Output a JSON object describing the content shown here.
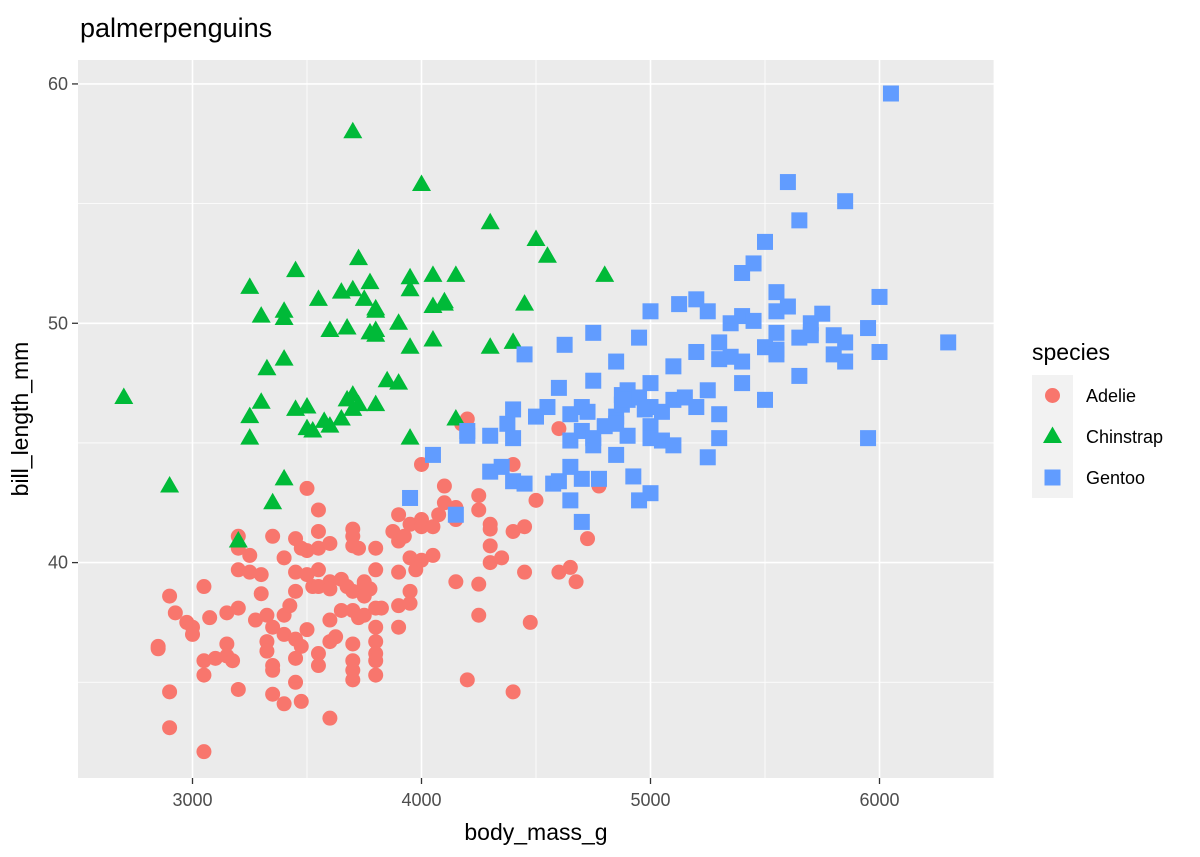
{
  "chart_data": {
    "type": "scatter",
    "title": "palmerpenguins",
    "xlabel": "body_mass_g",
    "ylabel": "bill_length_mm",
    "xlim": [
      2500,
      6500
    ],
    "ylim": [
      31,
      61
    ],
    "xticks": [
      3000,
      4000,
      5000,
      6000
    ],
    "yticks": [
      40,
      50,
      60
    ],
    "grid": true,
    "legend": {
      "title": "species",
      "position": "right"
    },
    "series": [
      {
        "name": "Adelie",
        "shape": "circle",
        "color": "#F8766D",
        "points": [
          [
            2850,
            36.5
          ],
          [
            2850,
            36.4
          ],
          [
            2900,
            38.6
          ],
          [
            2900,
            34.6
          ],
          [
            2900,
            33.1
          ],
          [
            2925,
            37.9
          ],
          [
            2975,
            37.5
          ],
          [
            3000,
            37.3
          ],
          [
            3000,
            37.0
          ],
          [
            3050,
            39.0
          ],
          [
            3050,
            35.9
          ],
          [
            3050,
            35.3
          ],
          [
            3050,
            32.1
          ],
          [
            3075,
            37.7
          ],
          [
            3100,
            36.0
          ],
          [
            3150,
            36.6
          ],
          [
            3150,
            36.1
          ],
          [
            3150,
            37.9
          ],
          [
            3175,
            35.9
          ],
          [
            3200,
            38.1
          ],
          [
            3200,
            41.1
          ],
          [
            3200,
            40.6
          ],
          [
            3200,
            39.7
          ],
          [
            3200,
            34.7
          ],
          [
            3250,
            40.3
          ],
          [
            3250,
            39.6
          ],
          [
            3275,
            37.6
          ],
          [
            3300,
            38.7
          ],
          [
            3300,
            39.5
          ],
          [
            3325,
            37.8
          ],
          [
            3325,
            36.7
          ],
          [
            3325,
            36.3
          ],
          [
            3350,
            41.1
          ],
          [
            3350,
            37.3
          ],
          [
            3350,
            35.7
          ],
          [
            3350,
            35.5
          ],
          [
            3350,
            34.5
          ],
          [
            3400,
            40.2
          ],
          [
            3400,
            37.0
          ],
          [
            3400,
            37.8
          ],
          [
            3400,
            34.1
          ],
          [
            3425,
            38.2
          ],
          [
            3450,
            41.0
          ],
          [
            3450,
            39.6
          ],
          [
            3450,
            38.8
          ],
          [
            3450,
            36.8
          ],
          [
            3450,
            36.0
          ],
          [
            3450,
            35.0
          ],
          [
            3475,
            40.6
          ],
          [
            3475,
            36.5
          ],
          [
            3475,
            34.2
          ],
          [
            3500,
            43.1
          ],
          [
            3500,
            39.5
          ],
          [
            3500,
            40.5
          ],
          [
            3500,
            37.2
          ],
          [
            3525,
            39.0
          ],
          [
            3550,
            42.2
          ],
          [
            3550,
            41.3
          ],
          [
            3550,
            40.6
          ],
          [
            3550,
            39.7
          ],
          [
            3550,
            39.0
          ],
          [
            3550,
            36.2
          ],
          [
            3550,
            35.7
          ],
          [
            3600,
            40.8
          ],
          [
            3600,
            39.2
          ],
          [
            3600,
            38.9
          ],
          [
            3600,
            37.6
          ],
          [
            3600,
            36.7
          ],
          [
            3600,
            33.5
          ],
          [
            3625,
            36.9
          ],
          [
            3650,
            39.3
          ],
          [
            3650,
            38.0
          ],
          [
            3675,
            39.0
          ],
          [
            3700,
            41.4
          ],
          [
            3700,
            41.1
          ],
          [
            3700,
            40.7
          ],
          [
            3700,
            38.8
          ],
          [
            3700,
            38.0
          ],
          [
            3700,
            36.6
          ],
          [
            3700,
            35.9
          ],
          [
            3700,
            35.5
          ],
          [
            3700,
            35.1
          ],
          [
            3725,
            40.6
          ],
          [
            3725,
            37.7
          ],
          [
            3750,
            39.1
          ],
          [
            3750,
            39.2
          ],
          [
            3750,
            38.6
          ],
          [
            3750,
            37.8
          ],
          [
            3775,
            38.9
          ],
          [
            3800,
            40.6
          ],
          [
            3800,
            39.7
          ],
          [
            3800,
            38.1
          ],
          [
            3800,
            37.3
          ],
          [
            3800,
            36.7
          ],
          [
            3800,
            35.9
          ],
          [
            3800,
            35.3
          ],
          [
            3800,
            36.2
          ],
          [
            3825,
            38.1
          ],
          [
            3875,
            41.3
          ],
          [
            3900,
            42.0
          ],
          [
            3900,
            40.9
          ],
          [
            3900,
            39.6
          ],
          [
            3900,
            37.3
          ],
          [
            3900,
            38.2
          ],
          [
            3925,
            41.1
          ],
          [
            3950,
            40.2
          ],
          [
            3950,
            41.6
          ],
          [
            3950,
            38.8
          ],
          [
            3950,
            38.3
          ],
          [
            3975,
            39.7
          ],
          [
            4000,
            44.1
          ],
          [
            4000,
            41.8
          ],
          [
            4000,
            41.5
          ],
          [
            4000,
            40.1
          ],
          [
            4050,
            41.5
          ],
          [
            4050,
            40.3
          ],
          [
            4075,
            42.0
          ],
          [
            4100,
            43.2
          ],
          [
            4100,
            42.5
          ],
          [
            4150,
            42.3
          ],
          [
            4150,
            41.8
          ],
          [
            4150,
            39.2
          ],
          [
            4175,
            45.8
          ],
          [
            4200,
            46.0
          ],
          [
            4200,
            35.1
          ],
          [
            4250,
            42.8
          ],
          [
            4250,
            42.2
          ],
          [
            4250,
            39.1
          ],
          [
            4250,
            37.8
          ],
          [
            4300,
            41.6
          ],
          [
            4300,
            41.4
          ],
          [
            4300,
            40.7
          ],
          [
            4300,
            40.0
          ],
          [
            4350,
            40.2
          ],
          [
            4400,
            44.1
          ],
          [
            4400,
            41.3
          ],
          [
            4400,
            34.6
          ],
          [
            4450,
            39.6
          ],
          [
            4450,
            41.5
          ],
          [
            4475,
            37.5
          ],
          [
            4500,
            42.6
          ],
          [
            4600,
            45.6
          ],
          [
            4600,
            39.6
          ],
          [
            4650,
            39.8
          ],
          [
            4675,
            39.2
          ],
          [
            4725,
            41.0
          ],
          [
            4775,
            43.2
          ]
        ]
      },
      {
        "name": "Chinstrap",
        "shape": "triangle",
        "color": "#00BA38",
        "points": [
          [
            2700,
            46.9
          ],
          [
            2900,
            43.2
          ],
          [
            3200,
            40.9
          ],
          [
            3250,
            46.1
          ],
          [
            3250,
            45.2
          ],
          [
            3250,
            51.5
          ],
          [
            3300,
            50.3
          ],
          [
            3300,
            46.7
          ],
          [
            3325,
            48.1
          ],
          [
            3350,
            42.5
          ],
          [
            3400,
            50.5
          ],
          [
            3400,
            50.2
          ],
          [
            3400,
            48.5
          ],
          [
            3400,
            43.5
          ],
          [
            3450,
            52.2
          ],
          [
            3450,
            46.4
          ],
          [
            3500,
            46.5
          ],
          [
            3500,
            45.6
          ],
          [
            3525,
            45.5
          ],
          [
            3550,
            51.0
          ],
          [
            3575,
            45.9
          ],
          [
            3600,
            49.7
          ],
          [
            3600,
            45.7
          ],
          [
            3650,
            46.0
          ],
          [
            3650,
            51.3
          ],
          [
            3675,
            49.8
          ],
          [
            3675,
            46.8
          ],
          [
            3700,
            58.0
          ],
          [
            3700,
            51.4
          ],
          [
            3700,
            46.4
          ],
          [
            3700,
            47.0
          ],
          [
            3725,
            52.7
          ],
          [
            3725,
            46.6
          ],
          [
            3750,
            51.0
          ],
          [
            3775,
            51.7
          ],
          [
            3775,
            49.6
          ],
          [
            3800,
            50.6
          ],
          [
            3800,
            50.5
          ],
          [
            3800,
            49.7
          ],
          [
            3800,
            49.5
          ],
          [
            3800,
            46.6
          ],
          [
            3850,
            47.6
          ],
          [
            3900,
            50.0
          ],
          [
            3900,
            47.5
          ],
          [
            3950,
            51.9
          ],
          [
            3950,
            51.4
          ],
          [
            3950,
            49.0
          ],
          [
            3950,
            45.2
          ],
          [
            4000,
            55.8
          ],
          [
            4050,
            52.0
          ],
          [
            4050,
            50.7
          ],
          [
            4050,
            49.3
          ],
          [
            4100,
            50.9
          ],
          [
            4100,
            50.8
          ],
          [
            4150,
            52.0
          ],
          [
            4150,
            46.0
          ],
          [
            4300,
            54.2
          ],
          [
            4300,
            49.0
          ],
          [
            4400,
            49.2
          ],
          [
            4450,
            50.8
          ],
          [
            4500,
            53.5
          ],
          [
            4550,
            52.8
          ],
          [
            4800,
            52.0
          ]
        ]
      },
      {
        "name": "Gentoo",
        "shape": "square",
        "color": "#619CFF",
        "points": [
          [
            3950,
            42.7
          ],
          [
            4050,
            44.5
          ],
          [
            4150,
            42.0
          ],
          [
            4200,
            45.5
          ],
          [
            4200,
            45.3
          ],
          [
            4300,
            45.3
          ],
          [
            4300,
            43.8
          ],
          [
            4350,
            44.0
          ],
          [
            4375,
            45.8
          ],
          [
            4400,
            46.4
          ],
          [
            4400,
            45.2
          ],
          [
            4400,
            43.4
          ],
          [
            4450,
            48.7
          ],
          [
            4450,
            43.3
          ],
          [
            4500,
            46.1
          ],
          [
            4550,
            46.5
          ],
          [
            4575,
            43.3
          ],
          [
            4600,
            47.3
          ],
          [
            4600,
            43.4
          ],
          [
            4625,
            49.1
          ],
          [
            4650,
            46.2
          ],
          [
            4650,
            45.1
          ],
          [
            4650,
            44.0
          ],
          [
            4650,
            42.6
          ],
          [
            4700,
            46.5
          ],
          [
            4700,
            45.5
          ],
          [
            4700,
            43.5
          ],
          [
            4700,
            41.7
          ],
          [
            4725,
            46.3
          ],
          [
            4750,
            49.6
          ],
          [
            4750,
            47.6
          ],
          [
            4750,
            45.2
          ],
          [
            4750,
            44.9
          ],
          [
            4775,
            43.5
          ],
          [
            4800,
            45.7
          ],
          [
            4850,
            48.4
          ],
          [
            4850,
            46.1
          ],
          [
            4850,
            45.8
          ],
          [
            4850,
            44.5
          ],
          [
            4875,
            47.0
          ],
          [
            4875,
            46.6
          ],
          [
            4900,
            47.2
          ],
          [
            4900,
            46.8
          ],
          [
            4900,
            45.3
          ],
          [
            4925,
            43.6
          ],
          [
            4950,
            49.4
          ],
          [
            4950,
            46.9
          ],
          [
            4950,
            42.6
          ],
          [
            4975,
            46.4
          ],
          [
            5000,
            50.5
          ],
          [
            5000,
            47.5
          ],
          [
            5000,
            46.5
          ],
          [
            5000,
            45.7
          ],
          [
            5000,
            45.2
          ],
          [
            5000,
            42.9
          ],
          [
            5050,
            46.3
          ],
          [
            5050,
            45.1
          ],
          [
            5100,
            48.2
          ],
          [
            5100,
            46.8
          ],
          [
            5100,
            44.9
          ],
          [
            5125,
            50.8
          ],
          [
            5150,
            46.9
          ],
          [
            5200,
            51.0
          ],
          [
            5200,
            48.8
          ],
          [
            5200,
            46.5
          ],
          [
            5250,
            50.5
          ],
          [
            5250,
            47.2
          ],
          [
            5250,
            44.4
          ],
          [
            5300,
            49.2
          ],
          [
            5300,
            48.5
          ],
          [
            5300,
            46.2
          ],
          [
            5300,
            45.2
          ],
          [
            5350,
            50.0
          ],
          [
            5350,
            48.6
          ],
          [
            5400,
            52.1
          ],
          [
            5400,
            50.3
          ],
          [
            5400,
            48.4
          ],
          [
            5400,
            47.5
          ],
          [
            5450,
            52.5
          ],
          [
            5450,
            50.1
          ],
          [
            5500,
            53.4
          ],
          [
            5500,
            49.0
          ],
          [
            5500,
            46.8
          ],
          [
            5550,
            51.3
          ],
          [
            5550,
            49.6
          ],
          [
            5550,
            48.9
          ],
          [
            5550,
            48.7
          ],
          [
            5550,
            50.5
          ],
          [
            5600,
            55.9
          ],
          [
            5600,
            50.7
          ],
          [
            5650,
            54.3
          ],
          [
            5650,
            49.4
          ],
          [
            5650,
            47.8
          ],
          [
            5700,
            50.0
          ],
          [
            5700,
            49.5
          ],
          [
            5750,
            50.4
          ],
          [
            5800,
            49.5
          ],
          [
            5800,
            48.7
          ],
          [
            5850,
            55.1
          ],
          [
            5850,
            49.2
          ],
          [
            5850,
            48.4
          ],
          [
            5950,
            49.8
          ],
          [
            5950,
            45.2
          ],
          [
            6000,
            51.1
          ],
          [
            6000,
            48.8
          ],
          [
            6050,
            59.6
          ],
          [
            6300,
            49.2
          ]
        ]
      }
    ]
  }
}
